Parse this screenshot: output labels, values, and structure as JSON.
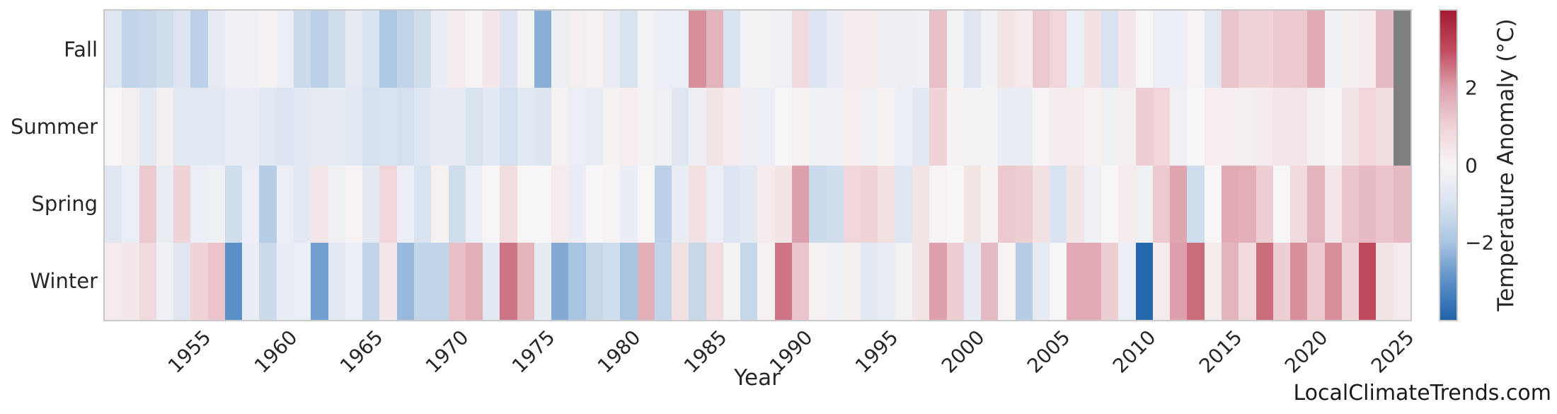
{
  "xlabel": "Year",
  "watermark": "LocalClimateTrends.com",
  "colorbar": {
    "label": "Temperature Anomaly (°C)",
    "ticks": [
      {
        "value": 2,
        "label": "2"
      },
      {
        "value": 0,
        "label": "0"
      },
      {
        "value": -2,
        "label": "−2"
      }
    ],
    "vmin": -4,
    "vmax": 4
  },
  "colors": {
    "nan": "#7f7f7f",
    "positive_stops": [
      "#f7f5f5",
      "#efd3d7",
      "#dda0ac",
      "#bf4a5e",
      "#a31c30"
    ],
    "negative_stops": [
      "#f3f3f5",
      "#d9e3f0",
      "#a9c4e1",
      "#5b8fc7",
      "#1f62a9"
    ],
    "border": "#c9c9c9",
    "text": "#262626"
  },
  "chart_data": {
    "type": "heatmap",
    "title": "",
    "xlabel": "Year",
    "ylabel": "",
    "legend_position": "right-colorbar",
    "grid": false,
    "x_ticks": [
      1955,
      1960,
      1965,
      1970,
      1975,
      1980,
      1985,
      1990,
      1995,
      2000,
      2005,
      2010,
      2015,
      2020,
      2025
    ],
    "x": [
      1950,
      1951,
      1952,
      1953,
      1954,
      1955,
      1956,
      1957,
      1958,
      1959,
      1960,
      1961,
      1962,
      1963,
      1964,
      1965,
      1966,
      1967,
      1968,
      1969,
      1970,
      1971,
      1972,
      1973,
      1974,
      1975,
      1976,
      1977,
      1978,
      1979,
      1980,
      1981,
      1982,
      1983,
      1984,
      1985,
      1986,
      1987,
      1988,
      1989,
      1990,
      1991,
      1992,
      1993,
      1994,
      1995,
      1996,
      1997,
      1998,
      1999,
      2000,
      2001,
      2002,
      2003,
      2004,
      2005,
      2006,
      2007,
      2008,
      2009,
      2010,
      2011,
      2012,
      2013,
      2014,
      2015,
      2016,
      2017,
      2018,
      2019,
      2020,
      2021,
      2022,
      2023,
      2024,
      2025
    ],
    "rows": [
      "Fall",
      "Summer",
      "Spring",
      "Winter"
    ],
    "value_units": "°C anomaly",
    "series": [
      {
        "name": "Fall",
        "values": [
          -0.8,
          -1.5,
          -1.4,
          -1.2,
          -0.9,
          -1.6,
          -0.5,
          -0.2,
          -0.1,
          0.1,
          -0.3,
          -1.3,
          -1.6,
          -1.2,
          -0.5,
          -1.0,
          -1.9,
          -1.5,
          -1.2,
          -0.35,
          0.3,
          0.05,
          0.4,
          -0.9,
          -0.05,
          -2.4,
          -0.25,
          0.2,
          0.15,
          -0.4,
          -1.0,
          -0.05,
          -0.3,
          -0.3,
          2.2,
          1.6,
          -1.0,
          -0.05,
          -0.05,
          -0.2,
          0.8,
          -0.9,
          -0.35,
          0.3,
          0.3,
          -0.25,
          -0.25,
          -0.2,
          1.4,
          -0.05,
          -0.8,
          -0.15,
          0.5,
          0.3,
          1.2,
          0.9,
          -0.3,
          0.6,
          -1.0,
          0.4,
          0.0,
          -0.3,
          -0.3,
          0.05,
          -0.7,
          1.3,
          1.0,
          1.0,
          1.2,
          1.2,
          1.8,
          -0.2,
          0.2,
          0.3,
          1.5,
          null
        ]
      },
      {
        "name": "Summer",
        "values": [
          0.0,
          0.2,
          -0.6,
          0.2,
          -0.7,
          -0.7,
          -0.6,
          -0.4,
          -0.4,
          -0.7,
          -0.9,
          -0.6,
          -0.5,
          -0.45,
          -0.6,
          -1.1,
          -1.0,
          -1.1,
          -0.8,
          -0.5,
          -0.5,
          -1.0,
          -0.6,
          -1.1,
          -0.7,
          -0.9,
          0.1,
          -0.3,
          -0.4,
          0.1,
          0.25,
          -0.05,
          -0.2,
          -0.8,
          -0.25,
          0.5,
          0.3,
          -0.25,
          -0.3,
          0.0,
          0.15,
          -0.15,
          -0.15,
          0.25,
          -0.2,
          0.1,
          -0.3,
          -0.6,
          1.0,
          0.1,
          -0.05,
          -0.05,
          -0.35,
          -0.35,
          0.05,
          0.3,
          0.3,
          0.15,
          -0.2,
          0.2,
          1.1,
          0.9,
          -0.2,
          0.0,
          0.25,
          0.25,
          0.2,
          0.3,
          0.4,
          0.45,
          0.2,
          0.05,
          0.5,
          0.9,
          0.7,
          null
        ]
      },
      {
        "name": "Spring",
        "values": [
          -0.8,
          -0.3,
          1.2,
          -0.4,
          1.0,
          -0.3,
          -0.2,
          -1.2,
          -0.3,
          -1.7,
          -0.3,
          -0.6,
          0.4,
          -0.15,
          0.05,
          -0.55,
          0.9,
          -0.3,
          -1.0,
          0.15,
          -1.2,
          -0.3,
          0.0,
          0.7,
          0.0,
          0.0,
          0.3,
          -0.35,
          0.0,
          0.05,
          -0.35,
          0.0,
          -1.6,
          -0.4,
          0.6,
          -0.3,
          -0.9,
          -0.6,
          0.3,
          0.5,
          2.0,
          -1.3,
          -1.2,
          0.9,
          1.0,
          0.6,
          -0.8,
          0.5,
          0.05,
          0.0,
          0.5,
          0.1,
          1.2,
          1.1,
          0.6,
          -1.0,
          0.5,
          -0.2,
          0.0,
          0.3,
          -0.2,
          1.2,
          1.9,
          -1.2,
          0.0,
          1.8,
          1.7,
          1.1,
          0.0,
          0.8,
          1.6,
          0.4,
          1.3,
          1.5,
          1.3,
          1.5
        ]
      },
      {
        "name": "Winter",
        "values": [
          0.3,
          0.4,
          0.8,
          -0.2,
          -0.8,
          1.0,
          1.3,
          -3.0,
          -0.4,
          -1.3,
          -0.35,
          -0.3,
          -2.7,
          -0.6,
          -0.3,
          -1.5,
          0.4,
          -2.2,
          -1.5,
          -1.5,
          1.4,
          1.7,
          -0.7,
          2.5,
          1.6,
          -0.5,
          -2.5,
          -2.0,
          -1.4,
          -1.2,
          -2.0,
          1.7,
          -1.5,
          0.6,
          -1.4,
          0.7,
          -0.05,
          -1.4,
          0.15,
          2.5,
          1.3,
          0.15,
          -0.2,
          0.2,
          -0.6,
          -0.4,
          -0.05,
          0.5,
          2.0,
          1.1,
          -0.5,
          1.5,
          0.05,
          -1.7,
          -0.5,
          0.0,
          1.8,
          1.8,
          1.1,
          -0.3,
          -3.9,
          0.3,
          2.0,
          2.6,
          0.3,
          1.6,
          0.8,
          2.6,
          1.1,
          2.2,
          1.2,
          2.2,
          1.0,
          3.0,
          0.5,
          0.3
        ]
      }
    ]
  }
}
